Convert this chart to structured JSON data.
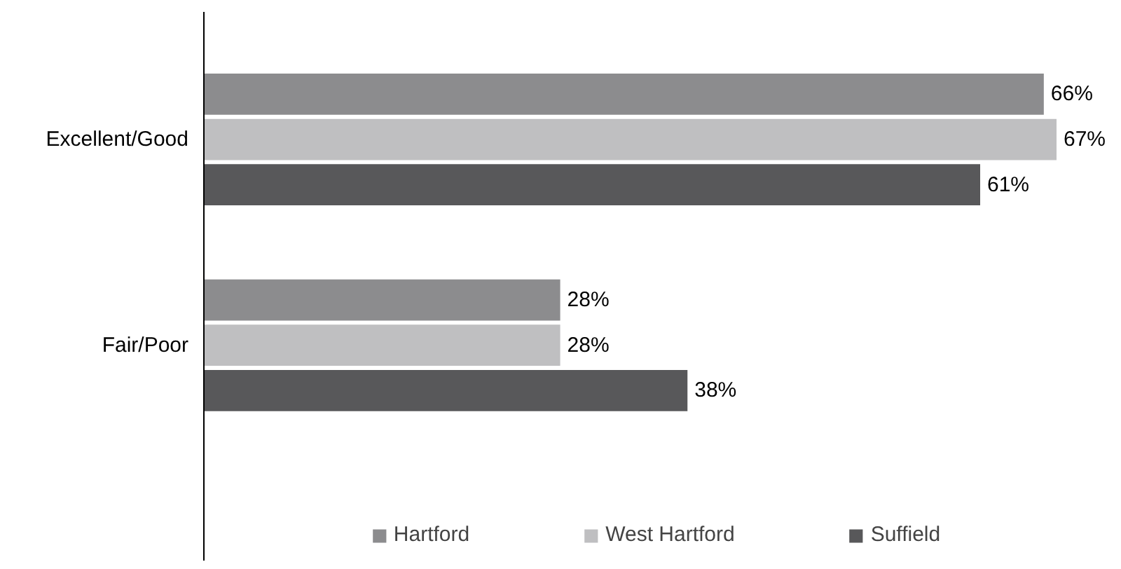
{
  "chart_data": {
    "type": "bar",
    "orientation": "horizontal",
    "categories": [
      "Excellent/Good",
      "Fair/Poor"
    ],
    "series": [
      {
        "name": "Hartford",
        "color": "#8c8c8e",
        "values": [
          66,
          28
        ],
        "value_labels": [
          "66%",
          "28%"
        ]
      },
      {
        "name": "West Hartford",
        "color": "#bfbfc1",
        "values": [
          67,
          28
        ],
        "value_labels": [
          "67%",
          "28%"
        ]
      },
      {
        "name": "Suffield",
        "color": "#58585a",
        "values": [
          61,
          38
        ],
        "value_labels": [
          "61%",
          "38%"
        ]
      }
    ],
    "grid": false,
    "legend": "bottom"
  }
}
